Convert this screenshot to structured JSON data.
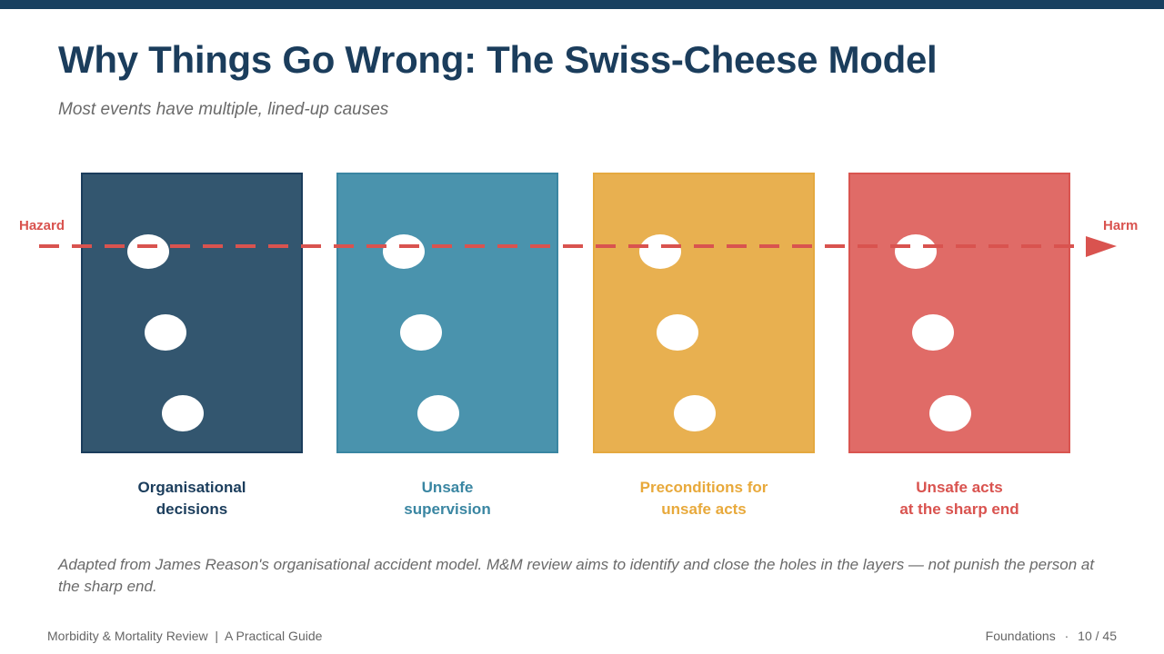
{
  "slide": {
    "title": "Why Things Go Wrong: The Swiss-Cheese Model",
    "subtitle": "Most events have multiple, lined-up causes",
    "caption": "Adapted from James Reason's organisational accident model. M&M review aims to identify and close the holes in the layers — not punish the person at the sharp end."
  },
  "diagram": {
    "start_label": "Hazard",
    "end_label": "Harm",
    "trajectory_color": "#d9534f",
    "layers": [
      {
        "label_line1": "Organisational",
        "label_line2": "decisions",
        "fill": "#33566f",
        "border": "#1b3d5c",
        "label_color": "#1b3d5c",
        "holes": 3
      },
      {
        "label_line1": "Unsafe",
        "label_line2": "supervision",
        "fill": "#4a93ad",
        "border": "#3a86a2",
        "label_color": "#3a86a2",
        "holes": 3
      },
      {
        "label_line1": "Preconditions for",
        "label_line2": "unsafe acts",
        "fill": "#e8b050",
        "border": "#e5a93f",
        "label_color": "#e8a93b",
        "holes": 3
      },
      {
        "label_line1": "Unsafe acts",
        "label_line2": "at the sharp end",
        "fill": "#e06b67",
        "border": "#d95550",
        "label_color": "#d9534f",
        "holes": 3
      }
    ]
  },
  "footer": {
    "left": "Morbidity & Mortality Review  |  A Practical Guide",
    "section": "Foundations",
    "separator": "·",
    "page": "10 / 45"
  }
}
